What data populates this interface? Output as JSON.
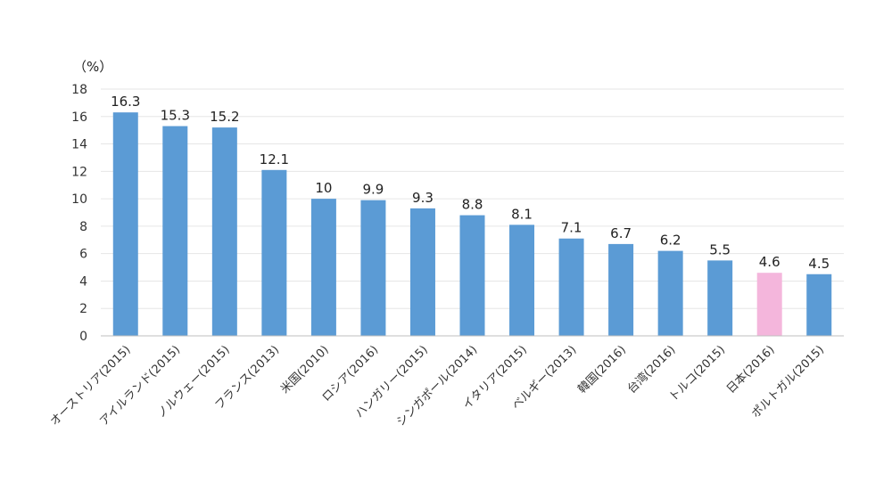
{
  "chart_data": {
    "type": "bar",
    "title": "",
    "xlabel": "",
    "ylabel": "（%）",
    "ylim": [
      0,
      18
    ],
    "yticks": [
      0,
      2,
      4,
      6,
      8,
      10,
      12,
      14,
      16,
      18
    ],
    "grid": true,
    "legend": "none",
    "categories": [
      "オーストリア(2015)",
      "アイルランド(2015)",
      "ノルウェー(2015)",
      "フランス(2013)",
      "米国(2010)",
      "ロシア(2016)",
      "ハンガリー(2015)",
      "シンガポール(2014)",
      "イタリア(2015)",
      "ベルギー(2013)",
      "韓国(2016)",
      "台湾(2016)",
      "トルコ(2015)",
      "日本(2016)",
      "ポルトガル(2015)"
    ],
    "values": [
      16.3,
      15.3,
      15.2,
      12.1,
      10,
      9.9,
      9.3,
      8.8,
      8.1,
      7.1,
      6.7,
      6.2,
      5.5,
      4.6,
      4.5
    ],
    "data_labels": [
      "16.3",
      "15.3",
      "15.2",
      "12.1",
      "10",
      "9.9",
      "9.3",
      "8.8",
      "8.1",
      "7.1",
      "6.7",
      "6.2",
      "5.5",
      "4.6",
      "4.5"
    ],
    "colors": {
      "default_bar": "#5b9bd5",
      "highlight_bar": "#f4b6dc"
    },
    "highlight_category": "日本(2016)"
  }
}
